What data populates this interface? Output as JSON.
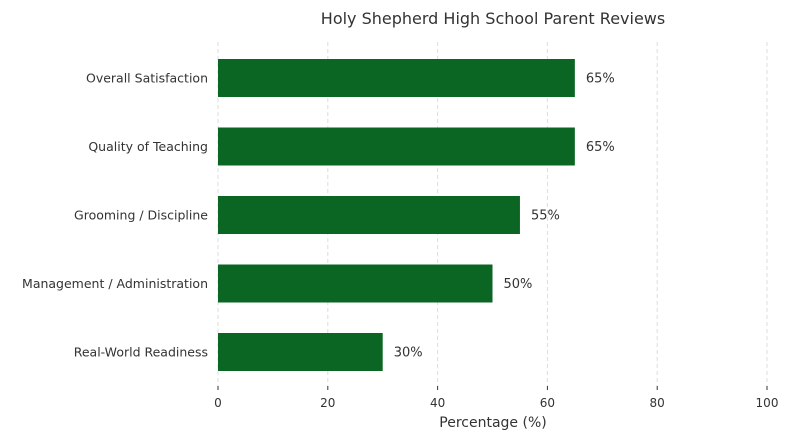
{
  "chart_data": {
    "type": "bar",
    "orientation": "horizontal",
    "title": "Holy Shepherd High School Parent Reviews",
    "xlabel": "Percentage (%)",
    "ylabel": "",
    "xlim": [
      0,
      100
    ],
    "xticks": [
      0,
      20,
      40,
      60,
      80,
      100
    ],
    "grid": "vertical dashed",
    "bar_color": "#0b6623",
    "categories": [
      "Overall Satisfaction",
      "Quality of Teaching",
      "Grooming / Discipline",
      "Management / Administration",
      "Real-World Readiness"
    ],
    "values": [
      65,
      65,
      55,
      50,
      30
    ],
    "value_labels": [
      "65%",
      "65%",
      "55%",
      "50%",
      "30%"
    ]
  }
}
